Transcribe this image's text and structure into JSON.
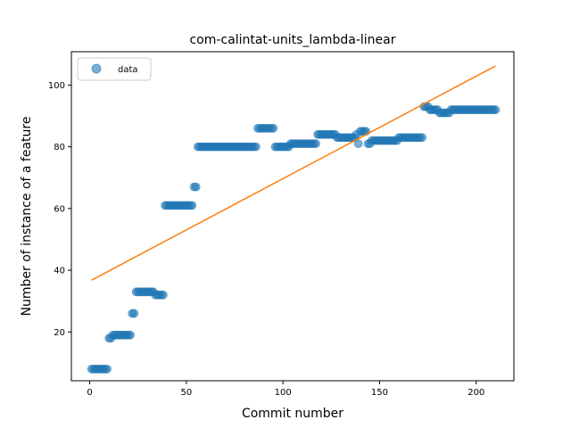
{
  "chart_data": {
    "type": "scatter",
    "title": "com-calintat-units_lambda-linear",
    "xlabel": "Commit number",
    "ylabel": "Number of instance of a feature",
    "xlim": [
      -9.5,
      219.5
    ],
    "ylim": [
      4.2,
      110.8
    ],
    "xticks": [
      0,
      50,
      100,
      150,
      200
    ],
    "yticks": [
      20,
      40,
      60,
      80,
      100
    ],
    "legend": {
      "position": "top-left",
      "entries": [
        "data"
      ]
    },
    "colors": {
      "data": "#1f77b4",
      "fit": "#ff7f0e"
    },
    "series": [
      {
        "name": "data",
        "kind": "points",
        "runs": [
          [
            1,
            9,
            8
          ],
          [
            10,
            11,
            18
          ],
          [
            12,
            21,
            19
          ],
          [
            22,
            23,
            26
          ],
          [
            24,
            33,
            33
          ],
          [
            34,
            38,
            32
          ],
          [
            39,
            53,
            61
          ],
          [
            54,
            55,
            67
          ],
          [
            56,
            86,
            80
          ],
          [
            87,
            95,
            86
          ],
          [
            96,
            103,
            80
          ],
          [
            104,
            117,
            81
          ],
          [
            118,
            127,
            84
          ],
          [
            128,
            137,
            83
          ],
          [
            138,
            138,
            84
          ],
          [
            139,
            139,
            81
          ],
          [
            140,
            143,
            85
          ],
          [
            144,
            145,
            81
          ],
          [
            146,
            159,
            82
          ],
          [
            160,
            172,
            83
          ],
          [
            173,
            175,
            93
          ],
          [
            176,
            180,
            92
          ],
          [
            181,
            186,
            91
          ],
          [
            187,
            210,
            92
          ]
        ]
      },
      {
        "kind": "line",
        "x": [
          1,
          210
        ],
        "y": [
          36.8,
          106.2
        ]
      }
    ]
  }
}
